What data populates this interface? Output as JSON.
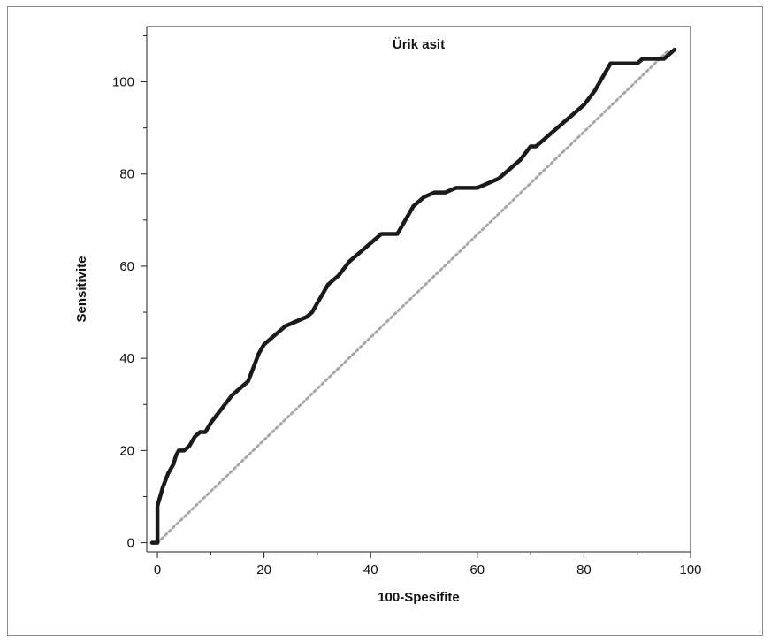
{
  "chart_data": {
    "type": "line",
    "title": "Ürik asit",
    "xlabel": "100-Spesifite",
    "ylabel": "Sensitivite",
    "xlim": [
      -2,
      100
    ],
    "ylim": [
      -2,
      112
    ],
    "xticks": [
      0,
      20,
      40,
      60,
      80,
      100
    ],
    "yticks": [
      0,
      20,
      40,
      60,
      80,
      100
    ],
    "x_minor_ticks": [
      10,
      30,
      50,
      70,
      90
    ],
    "y_minor_ticks": [
      10,
      30,
      50,
      70,
      90,
      110
    ],
    "grid": false,
    "series": [
      {
        "style": "solid",
        "color": "#1a1a1a",
        "x": [
          -1,
          0,
          0,
          0.5,
          1,
          2,
          3,
          3.5,
          4,
          5,
          6,
          7,
          8,
          9,
          10,
          12,
          14,
          16,
          17,
          18,
          19,
          20,
          22,
          24,
          26,
          28,
          29,
          30,
          31,
          32,
          34,
          36,
          38,
          40,
          42,
          44,
          45,
          46,
          48,
          50,
          52,
          54,
          56,
          58,
          60,
          62,
          64,
          66,
          68,
          70,
          71,
          72,
          74,
          76,
          78,
          80,
          82,
          83,
          84,
          85,
          86,
          88,
          90,
          91,
          92,
          94,
          95,
          96,
          97
        ],
        "y": [
          0,
          0,
          8,
          10,
          12,
          15,
          17,
          19,
          20,
          20,
          21,
          23,
          24,
          24,
          26,
          29,
          32,
          34,
          35,
          38,
          41,
          43,
          45,
          47,
          48,
          49,
          50,
          52,
          54,
          56,
          58,
          61,
          63,
          65,
          67,
          67,
          67,
          69,
          73,
          75,
          76,
          76,
          77,
          77,
          77,
          78,
          79,
          81,
          83,
          86,
          86,
          87,
          89,
          91,
          93,
          95,
          98,
          100,
          102,
          104,
          104,
          104,
          104,
          105,
          105,
          105,
          105,
          106,
          107
        ]
      },
      {
        "style": "dotted",
        "color": "#a8a8a8",
        "x": [
          0,
          96
        ],
        "y": [
          0,
          107
        ]
      }
    ]
  }
}
